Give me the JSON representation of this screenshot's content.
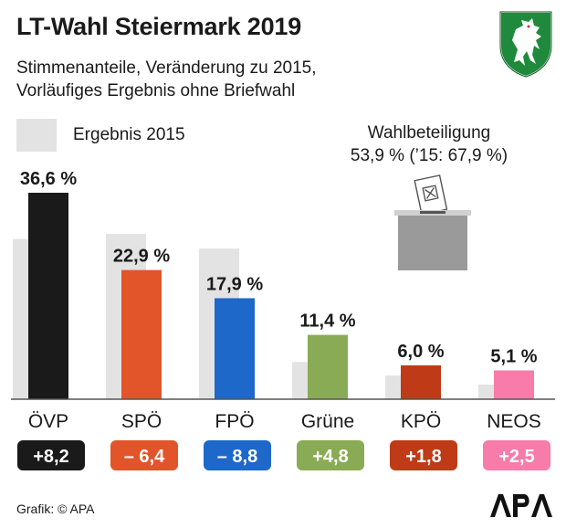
{
  "header": {
    "title": "LT-Wahl Steiermark 2019",
    "subtitle_line1": "Stimmenanteile, Veränderung zu 2015,",
    "subtitle_line2": "Vorläufiges Ergebnis ohne Briefwahl"
  },
  "legend": {
    "label": "Ergebnis 2015",
    "swatch_color": "#e3e3e3"
  },
  "turnout": {
    "label": "Wahlbeteiligung",
    "value": "53,9 % (’15: 67,9 %)"
  },
  "footer": {
    "credit": "Grafik: © APA"
  },
  "icons": {
    "crest": "styrian-panther-crest-icon",
    "ballot": "ballot-box-icon",
    "logo": "apa-logo-icon"
  },
  "chart_data": {
    "type": "bar",
    "categories": [
      "ÖVP",
      "SPÖ",
      "FPÖ",
      "Grüne",
      "KPÖ",
      "NEOS"
    ],
    "series": [
      {
        "name": "",
        "values": [
          36.6,
          22.9,
          17.9,
          11.4,
          6.0,
          5.1
        ]
      },
      {
        "name": "Ergebnis 2015",
        "values": [
          28.4,
          29.3,
          26.7,
          6.6,
          4.2,
          2.6
        ]
      }
    ],
    "value_labels": [
      "36,6 %",
      "22,9 %",
      "17,9 %",
      "11,4 %",
      "6,0 %",
      "5,1 %"
    ],
    "change_labels": [
      "+8,2",
      "– 6,4",
      "– 8,8",
      "+4,8",
      "+1,8",
      "+2,5"
    ],
    "colors": [
      "#1a1a1a",
      "#e2542a",
      "#1d68c9",
      "#8aab55",
      "#bf3a17",
      "#f77ca9"
    ],
    "baseline_color": "#555555",
    "ylim": [
      0,
      40
    ]
  }
}
